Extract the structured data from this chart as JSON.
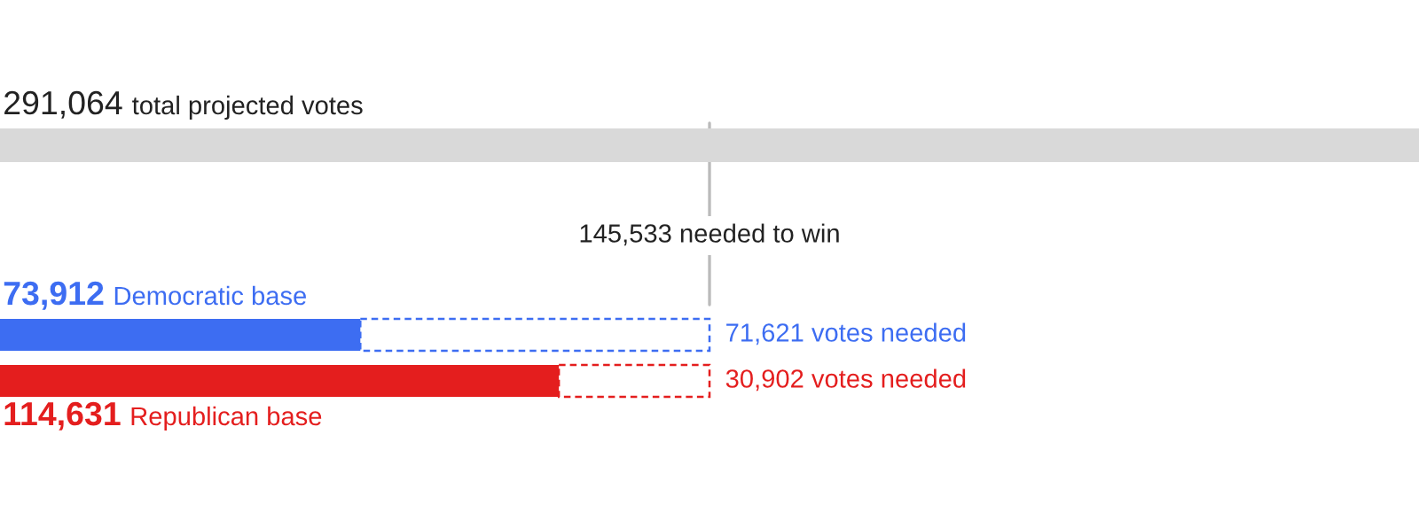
{
  "chart_data": {
    "type": "bar",
    "orientation": "horizontal",
    "stacked": true,
    "categories": [
      null,
      null,
      null
    ],
    "xlim": [
      0,
      291064
    ],
    "series": [
      {
        "colors": [
          "#d9d9d9",
          "#3d6df2",
          "#e41e1e"
        ],
        "values": [
          291064,
          73912,
          114631
        ],
        "value_labels": [
          "291,064 total projected votes",
          "73,912 Democratic base",
          "114,631 Republican base"
        ]
      },
      {
        "colors": [
          null,
          "#3d6df2",
          "#e41e1e"
        ],
        "line_style": "dashed",
        "values": [
          null,
          71621,
          30902
        ],
        "value_labels": [
          null,
          "71,621 votes needed",
          "30,902 votes needed"
        ]
      }
    ],
    "ref_lines": [
      {
        "axis": "x",
        "value": 145533,
        "label": "145,533 needed to win",
        "color": "#bbbbbb"
      }
    ]
  }
}
